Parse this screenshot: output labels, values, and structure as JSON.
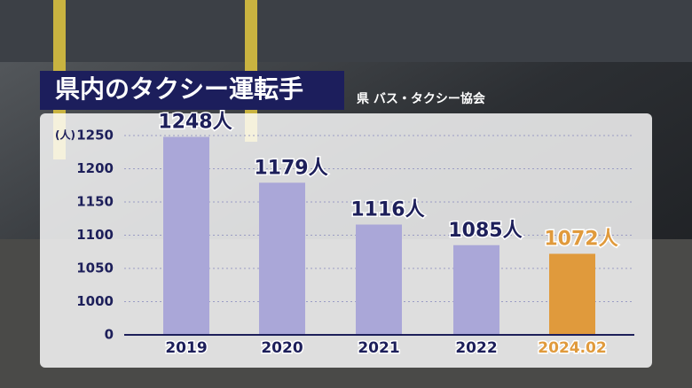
{
  "chart_data": {
    "type": "bar",
    "title": "県内のタクシー運転手",
    "source": "県 バス・タクシー協会",
    "y_label": "(人)",
    "categories": [
      "2019",
      "2020",
      "2021",
      "2022",
      "2024.02"
    ],
    "values": [
      1248,
      1179,
      1116,
      1085,
      1072
    ],
    "value_labels": [
      "1248人",
      "1179人",
      "1116人",
      "1085人",
      "1072人"
    ],
    "colors": [
      "#aaa7d8",
      "#aaa7d8",
      "#aaa7d8",
      "#aaa7d8",
      "#e09a3c"
    ],
    "ylim": [
      0,
      1250
    ],
    "yticks": [
      0,
      1000,
      1050,
      1100,
      1150,
      1200,
      1250
    ],
    "grid": true
  }
}
